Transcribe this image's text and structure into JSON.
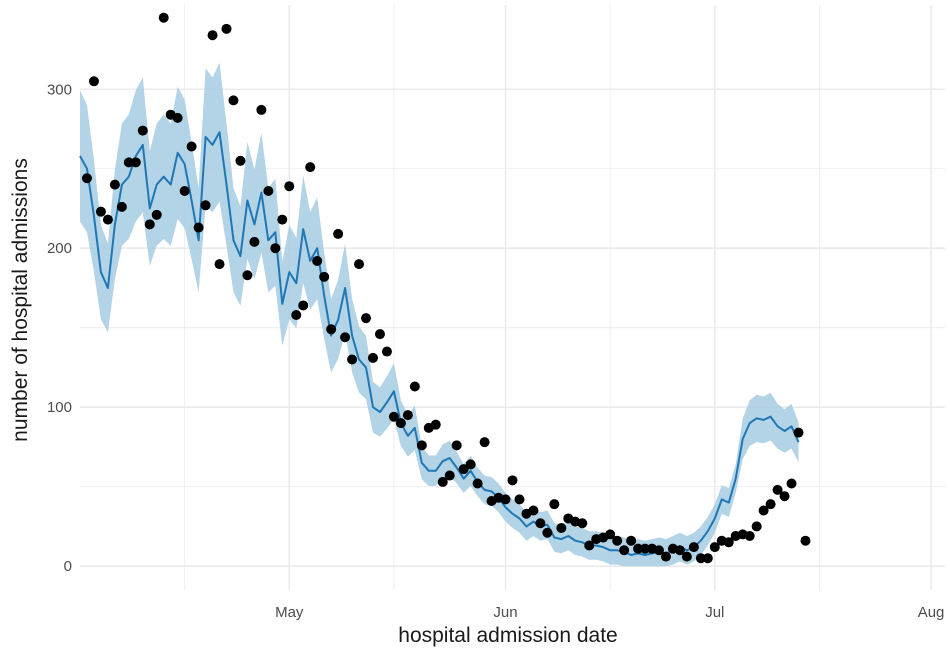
{
  "chart_data": {
    "type": "line",
    "xlabel": "hospital admission date",
    "ylabel": "number of hospital admissions",
    "grid": true,
    "legend": "none",
    "xlim": [
      "2020-04-01",
      "2020-08-03"
    ],
    "ylim": [
      -15,
      353
    ],
    "y_ticks": [
      0,
      100,
      200,
      300
    ],
    "x_ticks": [
      {
        "date": "2020-05-01",
        "label": "May"
      },
      {
        "date": "2020-06-01",
        "label": "Jun"
      },
      {
        "date": "2020-07-01",
        "label": "Jul"
      },
      {
        "date": "2020-08-01",
        "label": "Aug"
      }
    ],
    "x_minor_ticks": [
      "2020-04-16",
      "2020-05-16",
      "2020-06-16",
      "2020-07-16"
    ],
    "colors": {
      "line": "#1f77b4",
      "ribbon": "#a6cbe2",
      "points": "#000000",
      "grid": "#ebebeb"
    },
    "points": [
      [
        "2020-04-02",
        244
      ],
      [
        "2020-04-03",
        305
      ],
      [
        "2020-04-04",
        223
      ],
      [
        "2020-04-05",
        218
      ],
      [
        "2020-04-06",
        240
      ],
      [
        "2020-04-07",
        226
      ],
      [
        "2020-04-08",
        254
      ],
      [
        "2020-04-09",
        254
      ],
      [
        "2020-04-10",
        274
      ],
      [
        "2020-04-11",
        215
      ],
      [
        "2020-04-12",
        221
      ],
      [
        "2020-04-13",
        345
      ],
      [
        "2020-04-14",
        284
      ],
      [
        "2020-04-15",
        282
      ],
      [
        "2020-04-16",
        236
      ],
      [
        "2020-04-17",
        264
      ],
      [
        "2020-04-18",
        213
      ],
      [
        "2020-04-19",
        227
      ],
      [
        "2020-04-20",
        334
      ],
      [
        "2020-04-21",
        190
      ],
      [
        "2020-04-22",
        338
      ],
      [
        "2020-04-23",
        293
      ],
      [
        "2020-04-24",
        255
      ],
      [
        "2020-04-25",
        183
      ],
      [
        "2020-04-26",
        204
      ],
      [
        "2020-04-27",
        287
      ],
      [
        "2020-04-28",
        236
      ],
      [
        "2020-04-29",
        200
      ],
      [
        "2020-04-30",
        218
      ],
      [
        "2020-05-01",
        239
      ],
      [
        "2020-05-02",
        158
      ],
      [
        "2020-05-03",
        164
      ],
      [
        "2020-05-04",
        251
      ],
      [
        "2020-05-05",
        192
      ],
      [
        "2020-05-06",
        182
      ],
      [
        "2020-05-07",
        149
      ],
      [
        "2020-05-08",
        209
      ],
      [
        "2020-05-09",
        144
      ],
      [
        "2020-05-10",
        130
      ],
      [
        "2020-05-11",
        190
      ],
      [
        "2020-05-12",
        156
      ],
      [
        "2020-05-13",
        131
      ],
      [
        "2020-05-14",
        146
      ],
      [
        "2020-05-15",
        135
      ],
      [
        "2020-05-16",
        94
      ],
      [
        "2020-05-17",
        90
      ],
      [
        "2020-05-18",
        95
      ],
      [
        "2020-05-19",
        113
      ],
      [
        "2020-05-20",
        76
      ],
      [
        "2020-05-21",
        87
      ],
      [
        "2020-05-22",
        89
      ],
      [
        "2020-05-23",
        53
      ],
      [
        "2020-05-24",
        57
      ],
      [
        "2020-05-25",
        76
      ],
      [
        "2020-05-26",
        61
      ],
      [
        "2020-05-27",
        64
      ],
      [
        "2020-05-28",
        52
      ],
      [
        "2020-05-29",
        78
      ],
      [
        "2020-05-30",
        41
      ],
      [
        "2020-05-31",
        43
      ],
      [
        "2020-06-01",
        42
      ],
      [
        "2020-06-02",
        54
      ],
      [
        "2020-06-03",
        42
      ],
      [
        "2020-06-04",
        33
      ],
      [
        "2020-06-05",
        35
      ],
      [
        "2020-06-06",
        27
      ],
      [
        "2020-06-07",
        21
      ],
      [
        "2020-06-08",
        39
      ],
      [
        "2020-06-09",
        24
      ],
      [
        "2020-06-10",
        30
      ],
      [
        "2020-06-11",
        28
      ],
      [
        "2020-06-12",
        27
      ],
      [
        "2020-06-13",
        13
      ],
      [
        "2020-06-14",
        17
      ],
      [
        "2020-06-15",
        18
      ],
      [
        "2020-06-16",
        20
      ],
      [
        "2020-06-17",
        16
      ],
      [
        "2020-06-18",
        10
      ],
      [
        "2020-06-19",
        16
      ],
      [
        "2020-06-20",
        11
      ],
      [
        "2020-06-21",
        11
      ],
      [
        "2020-06-22",
        11
      ],
      [
        "2020-06-23",
        10
      ],
      [
        "2020-06-24",
        6
      ],
      [
        "2020-06-25",
        11
      ],
      [
        "2020-06-26",
        10
      ],
      [
        "2020-06-27",
        6
      ],
      [
        "2020-06-28",
        12
      ],
      [
        "2020-06-29",
        5
      ],
      [
        "2020-06-30",
        5
      ],
      [
        "2020-07-01",
        12
      ],
      [
        "2020-07-02",
        16
      ],
      [
        "2020-07-03",
        15
      ],
      [
        "2020-07-04",
        19
      ],
      [
        "2020-07-05",
        20
      ],
      [
        "2020-07-06",
        19
      ],
      [
        "2020-07-07",
        25
      ],
      [
        "2020-07-08",
        35
      ],
      [
        "2020-07-09",
        39
      ],
      [
        "2020-07-10",
        48
      ],
      [
        "2020-07-11",
        44
      ],
      [
        "2020-07-12",
        52
      ],
      [
        "2020-07-13",
        84
      ],
      [
        "2020-07-14",
        16
      ]
    ],
    "series": [
      {
        "values": [
          [
            "2020-04-01",
            258
          ],
          [
            "2020-04-02",
            250
          ],
          [
            "2020-04-03",
            220
          ],
          [
            "2020-04-04",
            185
          ],
          [
            "2020-04-05",
            175
          ],
          [
            "2020-04-06",
            215
          ],
          [
            "2020-04-07",
            240
          ],
          [
            "2020-04-08",
            245
          ],
          [
            "2020-04-09",
            258
          ],
          [
            "2020-04-10",
            265
          ],
          [
            "2020-04-11",
            225
          ],
          [
            "2020-04-12",
            240
          ],
          [
            "2020-04-13",
            245
          ],
          [
            "2020-04-14",
            240
          ],
          [
            "2020-04-15",
            260
          ],
          [
            "2020-04-16",
            253
          ],
          [
            "2020-04-17",
            230
          ],
          [
            "2020-04-18",
            205
          ],
          [
            "2020-04-19",
            270
          ],
          [
            "2020-04-20",
            265
          ],
          [
            "2020-04-21",
            273
          ],
          [
            "2020-04-22",
            240
          ],
          [
            "2020-04-23",
            205
          ],
          [
            "2020-04-24",
            195
          ],
          [
            "2020-04-25",
            230
          ],
          [
            "2020-04-26",
            215
          ],
          [
            "2020-04-27",
            235
          ],
          [
            "2020-04-28",
            205
          ],
          [
            "2020-04-29",
            210
          ],
          [
            "2020-04-30",
            165
          ],
          [
            "2020-05-01",
            185
          ],
          [
            "2020-05-02",
            178
          ],
          [
            "2020-05-03",
            212
          ],
          [
            "2020-05-04",
            192
          ],
          [
            "2020-05-05",
            200
          ],
          [
            "2020-05-06",
            170
          ],
          [
            "2020-05-07",
            145
          ],
          [
            "2020-05-08",
            155
          ],
          [
            "2020-05-09",
            175
          ],
          [
            "2020-05-10",
            145
          ],
          [
            "2020-05-11",
            130
          ],
          [
            "2020-05-12",
            125
          ],
          [
            "2020-05-13",
            100
          ],
          [
            "2020-05-14",
            97
          ],
          [
            "2020-05-15",
            103
          ],
          [
            "2020-05-16",
            110
          ],
          [
            "2020-05-17",
            90
          ],
          [
            "2020-05-18",
            82
          ],
          [
            "2020-05-19",
            87
          ],
          [
            "2020-05-20",
            65
          ],
          [
            "2020-05-21",
            60
          ],
          [
            "2020-05-22",
            60
          ],
          [
            "2020-05-23",
            66
          ],
          [
            "2020-05-24",
            68
          ],
          [
            "2020-05-25",
            62
          ],
          [
            "2020-05-26",
            55
          ],
          [
            "2020-05-27",
            60
          ],
          [
            "2020-05-28",
            53
          ],
          [
            "2020-05-29",
            48
          ],
          [
            "2020-05-30",
            47
          ],
          [
            "2020-05-31",
            43
          ],
          [
            "2020-06-01",
            37
          ],
          [
            "2020-06-02",
            33
          ],
          [
            "2020-06-03",
            30
          ],
          [
            "2020-06-04",
            25
          ],
          [
            "2020-06-05",
            28
          ],
          [
            "2020-06-06",
            25
          ],
          [
            "2020-06-07",
            26
          ],
          [
            "2020-06-08",
            18
          ],
          [
            "2020-06-09",
            17
          ],
          [
            "2020-06-10",
            19
          ],
          [
            "2020-06-11",
            16
          ],
          [
            "2020-06-12",
            15
          ],
          [
            "2020-06-13",
            13
          ],
          [
            "2020-06-14",
            13
          ],
          [
            "2020-06-15",
            12
          ],
          [
            "2020-06-16",
            10
          ],
          [
            "2020-06-17",
            10
          ],
          [
            "2020-06-18",
            9
          ],
          [
            "2020-06-19",
            7
          ],
          [
            "2020-06-20",
            8
          ],
          [
            "2020-06-21",
            7
          ],
          [
            "2020-06-22",
            8
          ],
          [
            "2020-06-23",
            9
          ],
          [
            "2020-06-24",
            8
          ],
          [
            "2020-06-25",
            10
          ],
          [
            "2020-06-26",
            12
          ],
          [
            "2020-06-27",
            10
          ],
          [
            "2020-06-28",
            12
          ],
          [
            "2020-06-29",
            16
          ],
          [
            "2020-06-30",
            22
          ],
          [
            "2020-07-01",
            30
          ],
          [
            "2020-07-02",
            42
          ],
          [
            "2020-07-03",
            40
          ],
          [
            "2020-07-04",
            55
          ],
          [
            "2020-07-05",
            80
          ],
          [
            "2020-07-06",
            90
          ],
          [
            "2020-07-07",
            93
          ],
          [
            "2020-07-08",
            92
          ],
          [
            "2020-07-09",
            94
          ],
          [
            "2020-07-10",
            88
          ],
          [
            "2020-07-11",
            85
          ],
          [
            "2020-07-12",
            88
          ],
          [
            "2020-07-13",
            78
          ]
        ]
      }
    ]
  }
}
